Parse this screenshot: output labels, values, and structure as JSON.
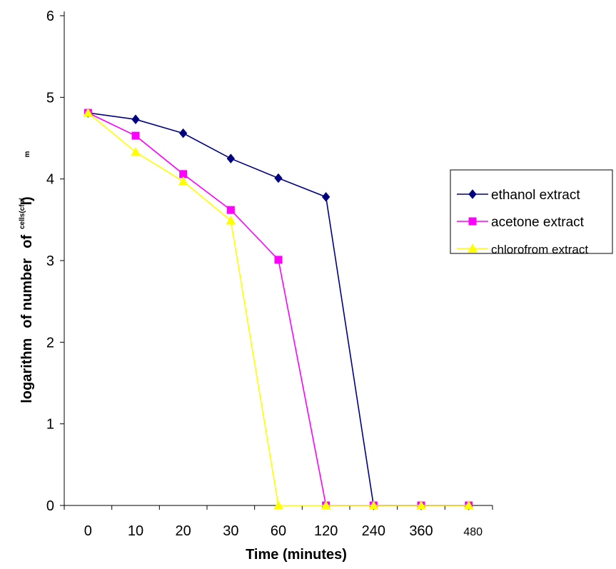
{
  "chart_data": {
    "type": "line",
    "xlabel": "Time (minutes)",
    "ylabel": {
      "main_part1": "logarithm",
      "main_part2": "of number",
      "main_part3": "of",
      "small_top": "cells(cfu/",
      "small_m": "m",
      "small_l": "l)"
    },
    "categories": [
      "0",
      "10",
      "20",
      "30",
      "60",
      "120",
      "240",
      "360",
      "480"
    ],
    "ylim": [
      0,
      6
    ],
    "yticks": [
      "0",
      "1",
      "2",
      "3",
      "4",
      "5",
      "6"
    ],
    "grid": false,
    "legend_position": "right",
    "series": [
      {
        "name": "ethanol extract",
        "color": "#000080",
        "marker": "diamond",
        "values": [
          4.81,
          4.73,
          4.56,
          4.25,
          4.01,
          3.78,
          0,
          0,
          0
        ]
      },
      {
        "name": "acetone extract",
        "color": "#ff00ff",
        "marker": "square",
        "values": [
          4.81,
          4.53,
          4.06,
          3.62,
          3.01,
          0,
          0,
          0,
          0
        ]
      },
      {
        "name": "chlorofrom extract",
        "color": "#ffff00",
        "marker": "triangle",
        "values": [
          4.81,
          4.33,
          3.97,
          3.49,
          0,
          0,
          0,
          0,
          0
        ]
      }
    ]
  }
}
